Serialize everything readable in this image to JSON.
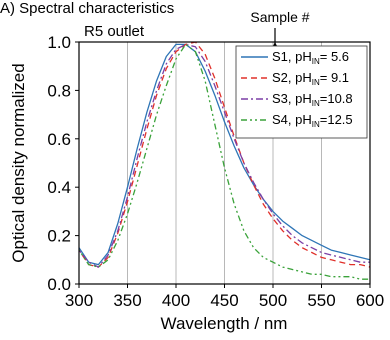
{
  "chart_data": {
    "type": "line",
    "title": "A) Spectral characteristics",
    "subtitle": "R5 outlet",
    "xlabel": "Wavelength / nm",
    "ylabel": "Optical density normalized",
    "xlim": [
      300,
      600
    ],
    "ylim": [
      0,
      1.0
    ],
    "xticks": [
      "300",
      "350",
      "400",
      "450",
      "500",
      "550",
      "600"
    ],
    "yticks": [
      "0.0",
      "0.2",
      "0.4",
      "0.6",
      "0.8",
      "1.0"
    ],
    "grid": "vertical",
    "legend_title": "Sample #",
    "legend_position": "top-right",
    "x": [
      290,
      300,
      310,
      320,
      330,
      340,
      350,
      360,
      370,
      380,
      390,
      400,
      410,
      420,
      430,
      440,
      450,
      460,
      470,
      480,
      490,
      500,
      510,
      520,
      530,
      540,
      550,
      560,
      570,
      580,
      590,
      600
    ],
    "series": [
      {
        "name": "S1, pH",
        "name_sub": "IN",
        "name_suffix": "=  5.6",
        "color": "#2e75b6",
        "dash": "",
        "values": [
          0.24,
          0.15,
          0.09,
          0.08,
          0.13,
          0.25,
          0.4,
          0.56,
          0.71,
          0.84,
          0.94,
          0.99,
          0.99,
          0.96,
          0.88,
          0.78,
          0.67,
          0.57,
          0.48,
          0.41,
          0.35,
          0.3,
          0.26,
          0.23,
          0.2,
          0.18,
          0.16,
          0.14,
          0.13,
          0.12,
          0.11,
          0.1
        ]
      },
      {
        "name": "S2, pH",
        "name_sub": "IN",
        "name_suffix": "=  9.1",
        "color": "#e0302a",
        "dash": "6,4",
        "values": [
          0.23,
          0.14,
          0.08,
          0.07,
          0.11,
          0.21,
          0.34,
          0.49,
          0.64,
          0.78,
          0.89,
          0.96,
          0.99,
          1.0,
          0.95,
          0.85,
          0.73,
          0.61,
          0.5,
          0.41,
          0.33,
          0.27,
          0.22,
          0.18,
          0.15,
          0.13,
          0.11,
          0.1,
          0.09,
          0.08,
          0.08,
          0.07
        ]
      },
      {
        "name": "S3, pH",
        "name_sub": "IN",
        "name_suffix": "=10.8",
        "color": "#7b3fa5",
        "dash": "7,3,2,3",
        "values": [
          0.23,
          0.14,
          0.09,
          0.07,
          0.12,
          0.22,
          0.36,
          0.52,
          0.67,
          0.8,
          0.91,
          0.97,
          0.99,
          0.98,
          0.92,
          0.82,
          0.71,
          0.6,
          0.5,
          0.42,
          0.35,
          0.29,
          0.24,
          0.2,
          0.17,
          0.15,
          0.13,
          0.12,
          0.11,
          0.1,
          0.09,
          0.09
        ]
      },
      {
        "name": "S4, pH",
        "name_sub": "IN",
        "name_suffix": "=12.5",
        "color": "#3aa23a",
        "dash": "6,3,2,3,2,3",
        "values": [
          0.23,
          0.14,
          0.08,
          0.07,
          0.1,
          0.18,
          0.29,
          0.42,
          0.56,
          0.7,
          0.82,
          0.93,
          0.99,
          0.96,
          0.84,
          0.66,
          0.48,
          0.33,
          0.22,
          0.15,
          0.11,
          0.09,
          0.07,
          0.06,
          0.05,
          0.04,
          0.04,
          0.03,
          0.03,
          0.03,
          0.02,
          0.02
        ]
      }
    ]
  }
}
